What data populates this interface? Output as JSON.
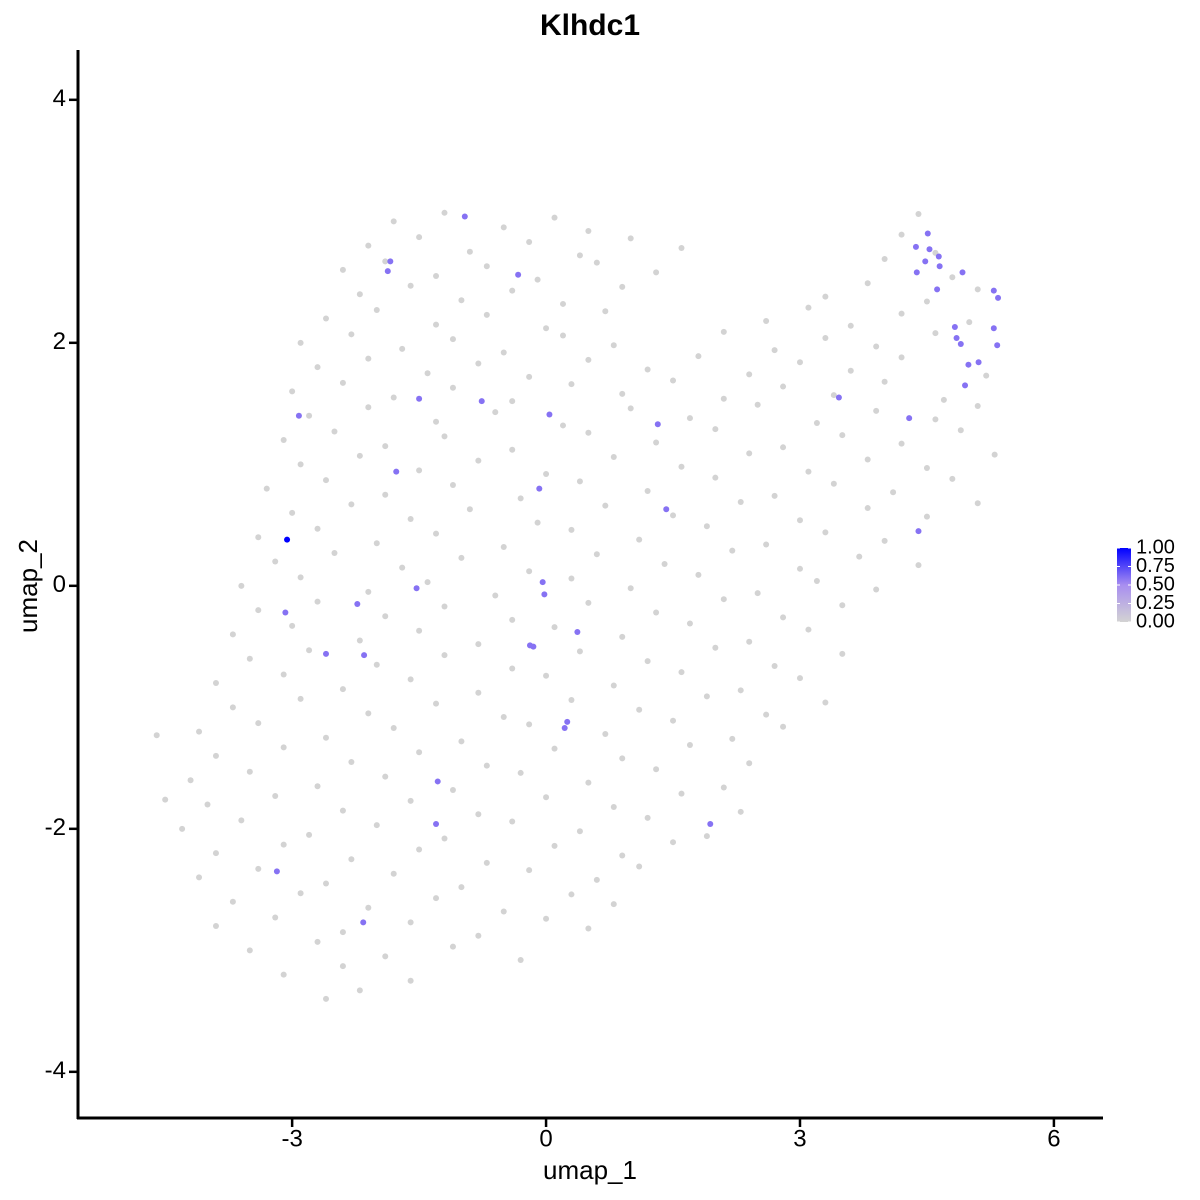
{
  "chart_data": {
    "type": "scatter",
    "title": "Klhdc1",
    "x_label": "umap_1",
    "y_label": "umap_2",
    "xlim": [
      -5.53,
      6.58
    ],
    "ylim": [
      -4.38,
      4.41
    ],
    "xticks": [
      -3,
      0,
      3,
      6
    ],
    "yticks": [
      -4,
      -2,
      0,
      2,
      4
    ],
    "colorscale": [
      "#d3d3d3",
      "#a88ef0",
      "#0000ff"
    ],
    "clim": [
      0,
      1
    ],
    "color_ticks": [
      {
        "value": 1,
        "label": "1.00"
      },
      {
        "value": 0.75,
        "label": "0.75"
      },
      {
        "value": 0.5,
        "label": "0.50"
      },
      {
        "value": 0.25,
        "label": "0.25"
      },
      {
        "value": 0,
        "label": "0.00"
      }
    ],
    "x": [
      -1.8,
      -1.2,
      -0.5,
      0.1,
      0.5,
      4.4,
      -2.1,
      -1.5,
      -0.9,
      -0.2,
      0.4,
      1.0,
      1.6,
      4.2,
      4.6,
      -2.4,
      -1.9,
      -1.3,
      -0.7,
      -0.1,
      0.6,
      1.3,
      4.0,
      4.8,
      -2.2,
      -1.6,
      -1.0,
      -0.4,
      0.2,
      0.9,
      3.3,
      3.8,
      4.5,
      5.1,
      -2.6,
      -2.0,
      -1.3,
      -0.7,
      0.0,
      0.7,
      2.6,
      3.1,
      3.6,
      4.2,
      5.0,
      -2.9,
      -2.3,
      -1.7,
      -1.1,
      -0.5,
      0.2,
      0.8,
      2.1,
      2.7,
      3.3,
      3.9,
      4.6,
      -2.7,
      -2.1,
      -1.4,
      -0.8,
      -0.2,
      0.5,
      1.2,
      1.8,
      2.4,
      3.0,
      3.6,
      4.2,
      5.2,
      -3.0,
      -2.4,
      -1.8,
      -1.1,
      -0.4,
      0.3,
      0.9,
      1.5,
      2.1,
      2.8,
      3.4,
      4.0,
      4.7,
      -2.8,
      -2.1,
      -1.3,
      -0.6,
      0.2,
      1.0,
      1.7,
      2.5,
      3.2,
      3.9,
      4.6,
      5.1,
      -3.1,
      -2.5,
      -1.9,
      -1.2,
      -0.4,
      0.5,
      1.3,
      2.0,
      2.8,
      3.5,
      4.2,
      4.9,
      -2.9,
      -2.2,
      -1.5,
      -0.8,
      0.0,
      0.8,
      1.6,
      2.4,
      3.1,
      3.8,
      4.5,
      5.3,
      -3.3,
      -2.6,
      -1.9,
      -1.1,
      -0.3,
      0.4,
      1.2,
      2.0,
      2.7,
      3.4,
      4.1,
      4.8,
      -3.0,
      -2.3,
      -1.6,
      -0.9,
      -0.1,
      0.7,
      1.5,
      2.3,
      3.0,
      3.8,
      4.5,
      5.1,
      -3.4,
      -2.7,
      -2.0,
      -1.3,
      -0.5,
      0.3,
      1.1,
      1.9,
      2.6,
      3.3,
      4.0,
      -3.2,
      -2.5,
      -1.7,
      -1.0,
      -0.2,
      0.6,
      1.4,
      2.2,
      3.0,
      3.7,
      4.4,
      -3.6,
      -2.9,
      -2.1,
      -1.4,
      -0.6,
      0.3,
      1.0,
      1.8,
      2.5,
      3.2,
      3.9,
      -3.4,
      -2.7,
      -1.9,
      -1.2,
      -0.4,
      0.5,
      1.3,
      2.1,
      2.8,
      3.5,
      -3.7,
      -3.0,
      -2.2,
      -1.5,
      -0.8,
      0.1,
      0.9,
      1.7,
      2.4,
      3.1,
      -3.5,
      -2.8,
      -2.0,
      -1.2,
      -0.4,
      0.4,
      1.2,
      2.0,
      2.7,
      3.5,
      -3.9,
      -3.1,
      -2.4,
      -1.6,
      -0.8,
      0.0,
      0.8,
      1.6,
      2.3,
      3.0,
      -3.7,
      -2.9,
      -2.1,
      -1.3,
      -0.5,
      0.3,
      1.1,
      1.9,
      2.6,
      3.3,
      -4.1,
      -3.4,
      -2.6,
      -1.8,
      -1.0,
      -0.2,
      0.7,
      1.5,
      2.2,
      2.8,
      -4.6,
      -3.9,
      -3.1,
      -2.3,
      -1.5,
      -0.7,
      0.1,
      0.9,
      1.7,
      2.4,
      -4.2,
      -3.5,
      -2.7,
      -1.9,
      -1.1,
      -0.3,
      0.5,
      1.3,
      2.1,
      -4.0,
      -3.2,
      -2.4,
      -1.6,
      -0.8,
      0.0,
      0.8,
      1.6,
      2.3,
      -4.5,
      -4.3,
      -3.6,
      -2.8,
      -2.0,
      -1.2,
      -0.4,
      0.4,
      1.2,
      1.9,
      -3.9,
      -3.1,
      -2.3,
      -1.5,
      -0.7,
      0.1,
      0.9,
      1.5,
      -4.1,
      -3.4,
      -2.6,
      -1.8,
      -1.0,
      -0.2,
      0.6,
      1.1,
      -3.7,
      -2.9,
      -2.1,
      -1.3,
      -0.5,
      0.3,
      0.8,
      -3.9,
      -3.2,
      -2.4,
      -1.6,
      -0.8,
      0.0,
      0.5,
      -3.5,
      -2.7,
      -1.9,
      -1.1,
      -0.3,
      -3.1,
      -2.4,
      -1.6,
      -2.6,
      -2.2,
      -0.96,
      -1.84,
      -1.87,
      -0.33,
      -2.92,
      -1.5,
      -0.76,
      0.04,
      1.32,
      -1.77,
      -0.08,
      1.42,
      -1.53,
      -3.08,
      -2.23,
      -0.04,
      -0.02,
      -2.6,
      -2.15,
      -0.19,
      -0.15,
      0.37,
      0.25,
      0.22,
      -1.28,
      -1.3,
      1.94,
      -3.18,
      -2.16,
      3.46,
      4.29,
      4.4,
      4.37,
      4.51,
      4.53,
      4.38,
      4.48,
      4.64,
      4.65,
      4.62,
      4.92,
      5.29,
      5.34,
      4.83,
      4.85,
      4.9,
      5.29,
      5.33,
      4.99,
      5.11,
      4.95,
      -3.06
    ],
    "y": [
      3.0,
      3.07,
      2.95,
      3.03,
      2.92,
      3.06,
      2.8,
      2.87,
      2.75,
      2.83,
      2.72,
      2.86,
      2.78,
      2.89,
      2.74,
      2.6,
      2.67,
      2.55,
      2.63,
      2.52,
      2.66,
      2.58,
      2.69,
      2.54,
      2.4,
      2.47,
      2.35,
      2.43,
      2.32,
      2.46,
      2.38,
      2.49,
      2.34,
      2.44,
      2.2,
      2.27,
      2.15,
      2.23,
      2.12,
      2.26,
      2.18,
      2.29,
      2.14,
      2.24,
      2.17,
      2.0,
      2.07,
      1.95,
      2.03,
      1.92,
      2.06,
      1.98,
      2.09,
      1.94,
      2.04,
      1.97,
      2.08,
      1.8,
      1.87,
      1.75,
      1.83,
      1.72,
      1.86,
      1.78,
      1.89,
      1.74,
      1.84,
      1.77,
      1.88,
      1.73,
      1.6,
      1.67,
      1.55,
      1.63,
      1.52,
      1.66,
      1.58,
      1.69,
      1.54,
      1.64,
      1.57,
      1.68,
      1.53,
      1.4,
      1.47,
      1.35,
      1.43,
      1.32,
      1.46,
      1.38,
      1.49,
      1.34,
      1.44,
      1.37,
      1.48,
      1.2,
      1.27,
      1.15,
      1.23,
      1.12,
      1.26,
      1.18,
      1.29,
      1.14,
      1.24,
      1.17,
      1.28,
      1.0,
      1.07,
      0.95,
      1.03,
      0.92,
      1.06,
      0.98,
      1.09,
      0.94,
      1.04,
      0.97,
      1.08,
      0.8,
      0.87,
      0.75,
      0.83,
      0.72,
      0.86,
      0.78,
      0.89,
      0.74,
      0.84,
      0.77,
      0.88,
      0.6,
      0.67,
      0.55,
      0.63,
      0.52,
      0.66,
      0.58,
      0.69,
      0.54,
      0.64,
      0.57,
      0.68,
      0.4,
      0.47,
      0.35,
      0.43,
      0.32,
      0.46,
      0.38,
      0.49,
      0.34,
      0.44,
      0.37,
      0.2,
      0.27,
      0.15,
      0.23,
      0.12,
      0.26,
      0.18,
      0.29,
      0.14,
      0.24,
      0.17,
      0,
      0.07,
      -0.05,
      0.03,
      -0.08,
      0.06,
      -0.02,
      0.09,
      -0.06,
      0.04,
      -0.03,
      -0.2,
      -0.13,
      -0.25,
      -0.17,
      -0.28,
      -0.14,
      -0.22,
      -0.11,
      -0.26,
      -0.16,
      -0.4,
      -0.33,
      -0.45,
      -0.37,
      -0.48,
      -0.34,
      -0.42,
      -0.31,
      -0.46,
      -0.36,
      -0.6,
      -0.53,
      -0.65,
      -0.57,
      -0.68,
      -0.54,
      -0.62,
      -0.51,
      -0.66,
      -0.56,
      -0.8,
      -0.73,
      -0.85,
      -0.77,
      -0.88,
      -0.74,
      -0.82,
      -0.71,
      -0.86,
      -0.76,
      -1.0,
      -0.93,
      -1.05,
      -0.97,
      -1.08,
      -0.94,
      -1.02,
      -0.91,
      -1.06,
      -0.96,
      -1.2,
      -1.13,
      -1.25,
      -1.17,
      -1.28,
      -1.14,
      -1.22,
      -1.11,
      -1.26,
      -1.16,
      -1.23,
      -1.4,
      -1.33,
      -1.45,
      -1.37,
      -1.48,
      -1.34,
      -1.42,
      -1.31,
      -1.46,
      -1.6,
      -1.53,
      -1.65,
      -1.57,
      -1.68,
      -1.54,
      -1.62,
      -1.51,
      -1.66,
      -1.8,
      -1.73,
      -1.85,
      -1.77,
      -1.88,
      -1.74,
      -1.82,
      -1.71,
      -1.86,
      -1.76,
      -2.0,
      -1.93,
      -2.05,
      -1.97,
      -2.08,
      -1.94,
      -2.02,
      -1.91,
      -2.06,
      -2.2,
      -2.13,
      -2.25,
      -2.17,
      -2.28,
      -2.14,
      -2.22,
      -2.11,
      -2.4,
      -2.33,
      -2.45,
      -2.37,
      -2.48,
      -2.34,
      -2.42,
      -2.31,
      -2.6,
      -2.53,
      -2.65,
      -2.57,
      -2.68,
      -2.54,
      -2.62,
      -2.8,
      -2.73,
      -2.85,
      -2.77,
      -2.88,
      -2.74,
      -2.82,
      -3.0,
      -2.93,
      -3.05,
      -2.97,
      -3.08,
      -3.2,
      -3.13,
      -3.25,
      -3.4,
      -3.33,
      3.04,
      2.67,
      2.59,
      2.56,
      1.4,
      1.54,
      1.52,
      1.41,
      1.33,
      0.94,
      0.8,
      0.63,
      -0.02,
      -0.22,
      -0.15,
      0.03,
      -0.07,
      -0.56,
      -0.57,
      -0.49,
      -0.5,
      -0.38,
      -1.12,
      -1.17,
      -1.61,
      -1.96,
      -1.96,
      -2.35,
      -2.77,
      1.55,
      1.38,
      0.45,
      2.79,
      2.9,
      2.77,
      2.58,
      2.67,
      2.71,
      2.63,
      2.44,
      2.58,
      2.43,
      2.37,
      2.13,
      2.04,
      1.99,
      2.12,
      1.98,
      1.82,
      1.84,
      1.65,
      0.38
    ],
    "values": [
      0,
      0,
      0,
      0,
      0,
      0,
      0,
      0,
      0,
      0,
      0,
      0,
      0,
      0,
      0,
      0,
      0,
      0,
      0,
      0,
      0,
      0,
      0,
      0,
      0,
      0,
      0,
      0,
      0,
      0,
      0,
      0,
      0,
      0,
      0,
      0,
      0,
      0,
      0,
      0,
      0,
      0,
      0,
      0,
      0,
      0,
      0,
      0,
      0,
      0,
      0,
      0,
      0,
      0,
      0,
      0,
      0,
      0,
      0,
      0,
      0,
      0,
      0,
      0,
      0,
      0,
      0,
      0,
      0,
      0,
      0,
      0,
      0,
      0,
      0,
      0,
      0,
      0,
      0,
      0,
      0,
      0,
      0,
      0,
      0,
      0,
      0,
      0,
      0,
      0,
      0,
      0,
      0,
      0,
      0,
      0,
      0,
      0,
      0,
      0,
      0,
      0,
      0,
      0,
      0,
      0,
      0,
      0,
      0,
      0,
      0,
      0,
      0,
      0,
      0,
      0,
      0,
      0,
      0,
      0,
      0,
      0,
      0,
      0,
      0,
      0,
      0,
      0,
      0,
      0,
      0,
      0,
      0,
      0,
      0,
      0,
      0,
      0,
      0,
      0,
      0,
      0,
      0,
      0,
      0,
      0,
      0,
      0,
      0,
      0,
      0,
      0,
      0,
      0,
      0,
      0,
      0,
      0,
      0,
      0,
      0,
      0,
      0,
      0,
      0,
      0,
      0,
      0,
      0,
      0,
      0,
      0,
      0,
      0,
      0,
      0,
      0,
      0,
      0,
      0,
      0,
      0,
      0,
      0,
      0,
      0,
      0,
      0,
      0,
      0,
      0,
      0,
      0,
      0,
      0,
      0,
      0,
      0,
      0,
      0,
      0,
      0,
      0,
      0,
      0,
      0,
      0,
      0,
      0,
      0,
      0,
      0,
      0,
      0,
      0,
      0,
      0,
      0,
      0,
      0,
      0,
      0,
      0,
      0,
      0,
      0,
      0,
      0,
      0,
      0,
      0,
      0,
      0,
      0,
      0,
      0,
      0,
      0,
      0,
      0,
      0,
      0,
      0,
      0,
      0,
      0,
      0,
      0,
      0,
      0,
      0,
      0,
      0,
      0,
      0,
      0,
      0,
      0,
      0,
      0,
      0,
      0,
      0,
      0,
      0,
      0,
      0,
      0,
      0,
      0,
      0,
      0,
      0,
      0,
      0,
      0,
      0,
      0,
      0,
      0,
      0,
      0,
      0,
      0,
      0,
      0,
      0,
      0,
      0,
      0,
      0,
      0,
      0,
      0,
      0,
      0,
      0,
      0,
      0,
      0,
      0,
      0,
      0,
      0,
      0,
      0,
      0,
      0,
      0,
      0,
      0,
      0,
      0,
      0,
      0.6,
      0.6,
      0.6,
      0.6,
      0.6,
      0.6,
      0.6,
      0.6,
      0.6,
      0.6,
      0.6,
      0.6,
      0.6,
      0.6,
      0.6,
      0.6,
      0.6,
      0.6,
      0.6,
      0.6,
      0.6,
      0.6,
      0.6,
      0.6,
      0.6,
      0.6,
      0.6,
      0.6,
      0.6,
      0.6,
      0.6,
      0.6,
      0.6,
      0.6,
      0.6,
      0.6,
      0.6,
      0.6,
      0.6,
      0.6,
      0.6,
      0.6,
      0.6,
      0.6,
      0.6,
      0.6,
      0.6,
      0.6,
      0.6,
      0.6,
      0.6,
      1
    ]
  }
}
